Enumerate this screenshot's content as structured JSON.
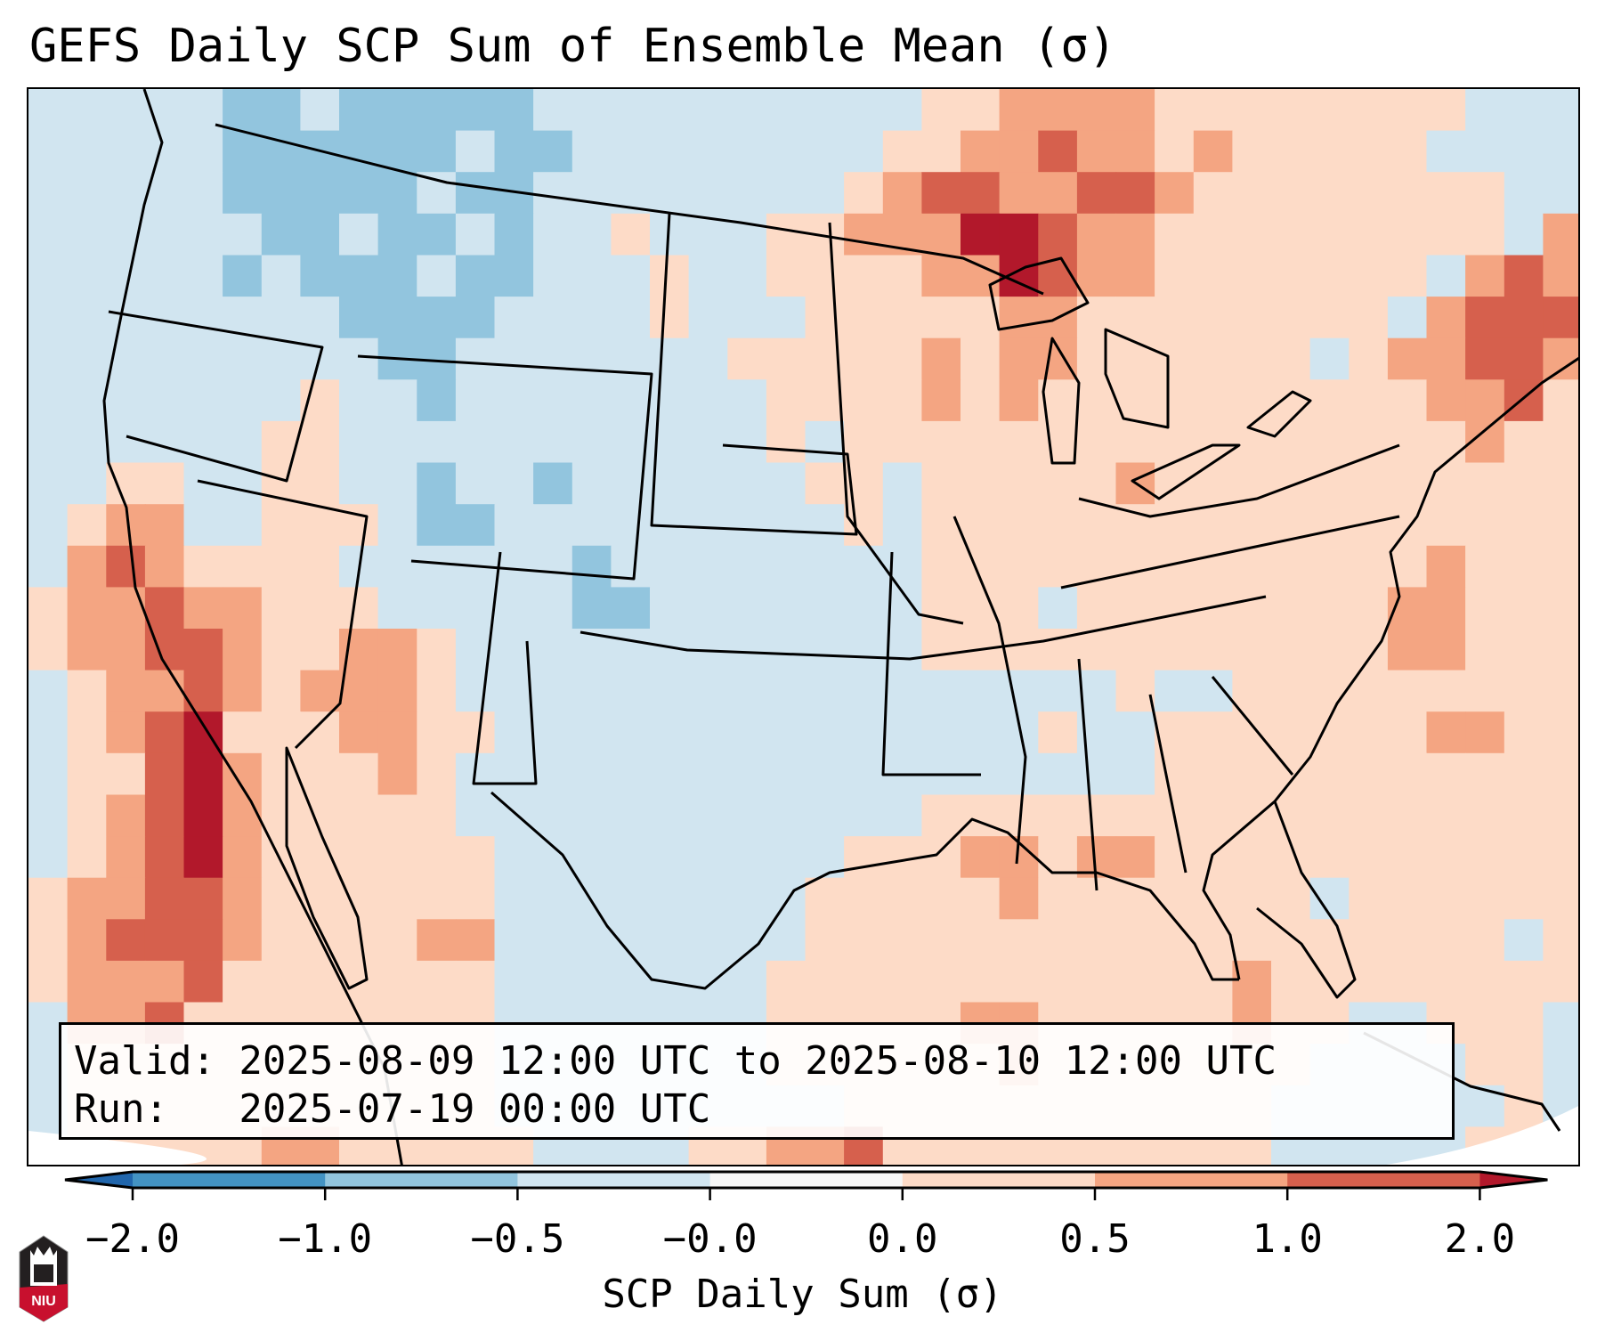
{
  "title": "GEFS Daily SCP Sum of Ensemble Mean (σ)",
  "info": {
    "valid_line": "Valid: 2025-08-09 12:00 UTC to 2025-08-10 12:00 UTC",
    "run_line": "Run:   2025-07-19 00:00 UTC"
  },
  "logo_text": "NIU",
  "chart_data": {
    "type": "heatmap",
    "title": "GEFS Daily SCP Sum of Ensemble Mean (σ)",
    "colorbar": {
      "label": "SCP Daily Sum (σ)",
      "ticks": [
        "-2.0",
        "-1.0",
        "-0.5",
        "-0.0",
        "0.0",
        "0.5",
        "1.0",
        "2.0"
      ],
      "boundaries": [
        -2.0,
        -1.0,
        -0.5,
        -0.0,
        0.0,
        0.5,
        1.0,
        2.0
      ],
      "colors": [
        "#4393c3",
        "#92c5de",
        "#d1e5f0",
        "#f7f7f7",
        "#fddbc7",
        "#f4a582",
        "#d6604d"
      ],
      "extend_min_color": "#2166ac",
      "extend_max_color": "#b2182b"
    },
    "grid_note_legend": {
      "a": -1.5,
      "b": -0.75,
      "c": -0.25,
      "e": 0.25,
      "f": 0.75,
      "g": 1.5,
      "h": 2.5
    },
    "grid": [
      "cccccbbcbbbbbcccccccccceeffffeeeeeeeeccc",
      "cccccbbbbbbcbbcccccccceeffgffefeeeeecccc",
      "cccccbbbbbcbbccccccccefggffggfeeeeeeeecc",
      "ccccccbbcbbcbcceccceefffhhgffeeeeeeeeecf",
      "cccccbcbbbcbbcccecceeeeffhgffeeeeeeecfgf",
      "ccccccccbbbbcccceccceeeeeffeeeeeeeecfggg",
      "cccccccccbbccccccceeeeefeffeeeeeeceffggf",
      "ccccccceccbcccccccceeeefefeeeeeeeeeeffge",
      "cccccceeccccccccccceceeeeeeeeeeeeeeeefee",
      "cceecceeccbccbcccccceeceeeeefeeeeeeeeeee",
      "ceffcceeecbbccccccccceceeeeeeeeeeeeeeeee",
      "cfgfeeeeccccccbcccccccceeeeeeeeeeeeefeee",
      "effgffeeecccccbbccccccceeeceeeeeeeeffeee",
      "effggfeeffecccccccccccceeeeeeeeeeeeffeee",
      "ceffgfefffecccccccccccccccccecceeeeeeeee",
      "cefgheeeffeeccccccccccccccecceeeeeeeffee",
      "ceeghfeeefecccccccccccccccccceeeeeeeeeee",
      "cefghfeeeeecccccccccccceeeeeeeeeeeeeeeee",
      "cefghfeeeeeeccccccccceeeffeffeeeeeeeeeee",
      "effggfeeeeeecccccccceeeeefeeeeeeeceeeeee",
      "efgggfeeeeffcccccccceeeeeeeeeeeeeeeeeece",
      "efffgeeeeeeeccccccceeeeeeeeeeeefeeeeeeee",
      "cffgeeeeeeeeccccccceeeeeffeeeeefeecceeec",
      "ceeeeeeeeeeeccccccceeeeeefeeeeeeecccceec",
      "ceeeeeeeeeeeccccccccceeeeeeeeeeeccccccec",
      "ceeeeeffeeeeecccceeffgeeeeeeeeeeccccceec"
    ]
  }
}
